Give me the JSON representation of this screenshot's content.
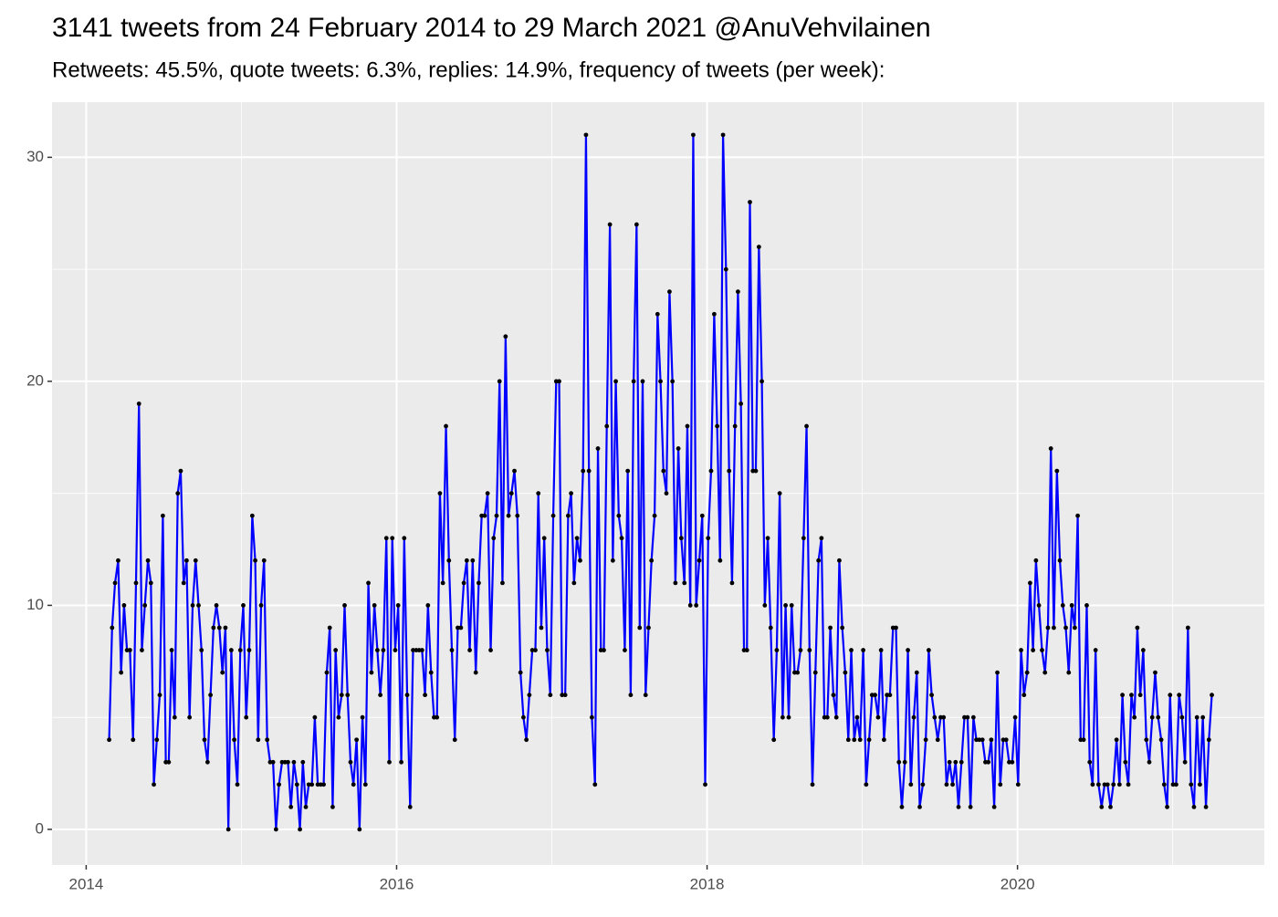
{
  "chart_data": {
    "type": "line",
    "title": "3141 tweets from 24 February 2014 to 29 March 2021 @AnuVehvilainen",
    "subtitle": "Retweets: 45.5%, quote tweets: 6.3%, replies: 14.9%, frequency of tweets (per week):",
    "xlim": [
      2013.78,
      2021.59
    ],
    "xticks": [
      2014,
      2016,
      2018,
      2020
    ],
    "xminor": [
      2015,
      2017,
      2019,
      2021
    ],
    "ylim": [
      -1.59,
      32.46
    ],
    "yticks": [
      0,
      10,
      20,
      30
    ],
    "yminor": [
      5,
      15,
      25
    ],
    "grid": true,
    "line_color": "#0000ff",
    "point_color": "#000000",
    "x": [
      2014.148,
      2014.167,
      2014.186,
      2014.206,
      2014.225,
      2014.244,
      2014.263,
      2014.282,
      2014.302,
      2014.321,
      2014.34,
      2014.359,
      2014.378,
      2014.398,
      2014.417,
      2014.436,
      2014.455,
      2014.474,
      2014.494,
      2014.513,
      2014.532,
      2014.551,
      2014.57,
      2014.59,
      2014.609,
      2014.628,
      2014.647,
      2014.666,
      2014.686,
      2014.705,
      2014.724,
      2014.743,
      2014.762,
      2014.782,
      2014.801,
      2014.82,
      2014.839,
      2014.858,
      2014.878,
      2014.897,
      2014.916,
      2014.935,
      2014.954,
      2014.974,
      2014.993,
      2015.012,
      2015.031,
      2015.05,
      2015.07,
      2015.089,
      2015.108,
      2015.127,
      2015.146,
      2015.166,
      2015.185,
      2015.204,
      2015.223,
      2015.242,
      2015.262,
      2015.281,
      2015.3,
      2015.319,
      2015.338,
      2015.358,
      2015.377,
      2015.396,
      2015.415,
      2015.434,
      2015.454,
      2015.473,
      2015.492,
      2015.511,
      2015.53,
      2015.55,
      2015.569,
      2015.588,
      2015.607,
      2015.626,
      2015.646,
      2015.665,
      2015.684,
      2015.703,
      2015.722,
      2015.742,
      2015.761,
      2015.78,
      2015.799,
      2015.818,
      2015.838,
      2015.857,
      2015.876,
      2015.895,
      2015.914,
      2015.934,
      2015.953,
      2015.972,
      2015.991,
      2016.01,
      2016.03,
      2016.049,
      2016.068,
      2016.087,
      2016.106,
      2016.126,
      2016.145,
      2016.164,
      2016.183,
      2016.202,
      2016.222,
      2016.241,
      2016.26,
      2016.279,
      2016.298,
      2016.318,
      2016.337,
      2016.356,
      2016.375,
      2016.394,
      2016.414,
      2016.433,
      2016.452,
      2016.471,
      2016.49,
      2016.51,
      2016.529,
      2016.548,
      2016.567,
      2016.586,
      2016.606,
      2016.625,
      2016.644,
      2016.663,
      2016.682,
      2016.702,
      2016.721,
      2016.74,
      2016.759,
      2016.778,
      2016.798,
      2016.817,
      2016.836,
      2016.855,
      2016.874,
      2016.894,
      2016.913,
      2016.932,
      2016.951,
      2016.97,
      2016.99,
      2017.009,
      2017.028,
      2017.047,
      2017.066,
      2017.086,
      2017.105,
      2017.124,
      2017.143,
      2017.162,
      2017.182,
      2017.201,
      2017.22,
      2017.239,
      2017.258,
      2017.278,
      2017.297,
      2017.316,
      2017.335,
      2017.354,
      2017.374,
      2017.393,
      2017.412,
      2017.431,
      2017.45,
      2017.47,
      2017.489,
      2017.508,
      2017.527,
      2017.546,
      2017.566,
      2017.585,
      2017.604,
      2017.623,
      2017.642,
      2017.662,
      2017.681,
      2017.7,
      2017.719,
      2017.738,
      2017.758,
      2017.777,
      2017.796,
      2017.815,
      2017.834,
      2017.854,
      2017.873,
      2017.892,
      2017.911,
      2017.93,
      2017.95,
      2017.969,
      2017.988,
      2018.007,
      2018.026,
      2018.046,
      2018.065,
      2018.084,
      2018.103,
      2018.122,
      2018.142,
      2018.161,
      2018.18,
      2018.199,
      2018.218,
      2018.238,
      2018.257,
      2018.276,
      2018.295,
      2018.314,
      2018.334,
      2018.353,
      2018.372,
      2018.391,
      2018.41,
      2018.43,
      2018.449,
      2018.468,
      2018.487,
      2018.506,
      2018.526,
      2018.545,
      2018.564,
      2018.583,
      2018.602,
      2018.622,
      2018.641,
      2018.66,
      2018.679,
      2018.698,
      2018.718,
      2018.737,
      2018.756,
      2018.775,
      2018.794,
      2018.814,
      2018.833,
      2018.852,
      2018.871,
      2018.89,
      2018.91,
      2018.929,
      2018.948,
      2018.967,
      2018.986,
      2019.006,
      2019.025,
      2019.044,
      2019.063,
      2019.082,
      2019.102,
      2019.121,
      2019.14,
      2019.159,
      2019.178,
      2019.198,
      2019.217,
      2019.236,
      2019.255,
      2019.274,
      2019.294,
      2019.313,
      2019.332,
      2019.351,
      2019.37,
      2019.39,
      2019.409,
      2019.428,
      2019.447,
      2019.466,
      2019.486,
      2019.505,
      2019.524,
      2019.543,
      2019.562,
      2019.582,
      2019.601,
      2019.62,
      2019.639,
      2019.658,
      2019.678,
      2019.697,
      2019.716,
      2019.735,
      2019.754,
      2019.774,
      2019.793,
      2019.812,
      2019.831,
      2019.85,
      2019.87,
      2019.889,
      2019.908,
      2019.927,
      2019.946,
      2019.966,
      2019.985,
      2020.004,
      2020.023,
      2020.042,
      2020.062,
      2020.081,
      2020.1,
      2020.119,
      2020.138,
      2020.158,
      2020.177,
      2020.196,
      2020.215,
      2020.234,
      2020.254,
      2020.273,
      2020.292,
      2020.311,
      2020.33,
      2020.35,
      2020.369,
      2020.388,
      2020.407,
      2020.426,
      2020.446,
      2020.465,
      2020.484,
      2020.503,
      2020.522,
      2020.542,
      2020.561,
      2020.58,
      2020.599,
      2020.618,
      2020.638,
      2020.657,
      2020.676,
      2020.695,
      2020.714,
      2020.734,
      2020.753,
      2020.772,
      2020.791,
      2020.81,
      2020.83,
      2020.849,
      2020.868,
      2020.887,
      2020.906,
      2020.926,
      2020.945,
      2020.964,
      2020.983,
      2021.002,
      2021.022,
      2021.041,
      2021.06,
      2021.079,
      2021.098,
      2021.118,
      2021.137,
      2021.156,
      2021.175,
      2021.194,
      2021.214,
      2021.233,
      2021.252
    ],
    "values": [
      4,
      9,
      11,
      12,
      7,
      10,
      8,
      8,
      4,
      11,
      19,
      8,
      10,
      12,
      11,
      2,
      4,
      6,
      14,
      3,
      3,
      8,
      5,
      15,
      16,
      11,
      12,
      5,
      10,
      12,
      10,
      8,
      4,
      3,
      6,
      9,
      10,
      9,
      7,
      9,
      0,
      8,
      4,
      2,
      8,
      10,
      5,
      8,
      14,
      12,
      4,
      10,
      12,
      4,
      3,
      3,
      0,
      2,
      3,
      3,
      3,
      1,
      3,
      2,
      0,
      3,
      1,
      2,
      2,
      5,
      2,
      2,
      2,
      7,
      9,
      1,
      8,
      5,
      6,
      10,
      6,
      3,
      2,
      4,
      0,
      5,
      2,
      11,
      7,
      10,
      8,
      6,
      8,
      13,
      3,
      13,
      8,
      10,
      3,
      13,
      6,
      1,
      8,
      8,
      8,
      8,
      6,
      10,
      7,
      5,
      5,
      15,
      11,
      18,
      12,
      8,
      4,
      9,
      9,
      11,
      12,
      8,
      12,
      7,
      11,
      14,
      14,
      15,
      8,
      13,
      14,
      20,
      11,
      22,
      14,
      15,
      16,
      14,
      7,
      5,
      4,
      6,
      8,
      8,
      15,
      9,
      13,
      8,
      6,
      14,
      20,
      20,
      6,
      6,
      14,
      15,
      11,
      13,
      12,
      16,
      31,
      16,
      5,
      2,
      17,
      8,
      8,
      18,
      27,
      12,
      20,
      14,
      13,
      8,
      16,
      6,
      20,
      27,
      9,
      20,
      6,
      9,
      12,
      14,
      23,
      20,
      16,
      15,
      24,
      20,
      11,
      17,
      13,
      11,
      18,
      10,
      31,
      10,
      12,
      14,
      2,
      13,
      16,
      23,
      18,
      12,
      31,
      25,
      16,
      11,
      18,
      24,
      19,
      8,
      8,
      28,
      16,
      16,
      26,
      20,
      10,
      13,
      9,
      4,
      8,
      15,
      5,
      10,
      5,
      10,
      7,
      7,
      8,
      13,
      18,
      8,
      2,
      7,
      12,
      13,
      5,
      5,
      9,
      6,
      5,
      12,
      9,
      7,
      4,
      8,
      4,
      5,
      4,
      8,
      2,
      4,
      6,
      6,
      5,
      8,
      4,
      6,
      6,
      9,
      9,
      3,
      1,
      3,
      8,
      2,
      5,
      7,
      1,
      2,
      4,
      8,
      6,
      5,
      4,
      5,
      5,
      2,
      3,
      2,
      3,
      1,
      3,
      5,
      5,
      1,
      5,
      4,
      4,
      4,
      3,
      3,
      4,
      1,
      7,
      2,
      4,
      4,
      3,
      3,
      5,
      2,
      8,
      6,
      7,
      11,
      8,
      12,
      10,
      8,
      7,
      9,
      17,
      9,
      16,
      12,
      10,
      9,
      7,
      10,
      9,
      14,
      4,
      4,
      10,
      3,
      2,
      8,
      2,
      1,
      2,
      2,
      1,
      2,
      4,
      2,
      6,
      3,
      2,
      6,
      5,
      9,
      6,
      8,
      4,
      3,
      5,
      7,
      5,
      4,
      2,
      1,
      6,
      2,
      2,
      6,
      5,
      3,
      9,
      2,
      1,
      5,
      2,
      5,
      1,
      4,
      6
    ]
  }
}
